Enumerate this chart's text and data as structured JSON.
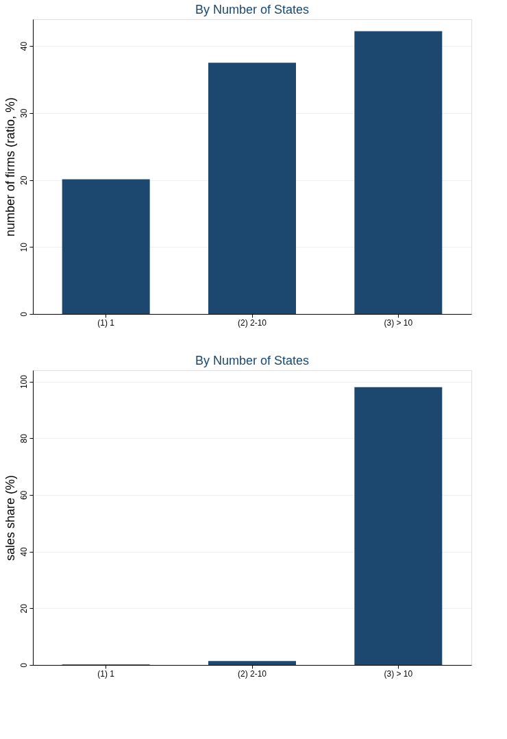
{
  "chart_data": [
    {
      "type": "bar",
      "title": "By Number of States",
      "ylabel": "number of firms (ratio, %)",
      "categories": [
        "(1) 1",
        "(2) 2-10",
        "(3) > 10"
      ],
      "values": [
        20.1,
        37.5,
        42.2
      ],
      "color": "#1c4870",
      "ylim": [
        0,
        44
      ],
      "yticks": [
        0,
        10,
        20,
        30,
        40
      ],
      "grid": "y"
    },
    {
      "type": "bar",
      "title": "By Number of States",
      "ylabel": "sales share (%)",
      "categories": [
        "(1) 1",
        "(2) 2-10",
        "(3) > 10"
      ],
      "values": [
        0.2,
        1.4,
        98.0
      ],
      "color": "#1c4870",
      "ylim": [
        0,
        104
      ],
      "yticks": [
        0,
        20,
        40,
        60,
        80,
        100
      ],
      "grid": "y"
    }
  ]
}
